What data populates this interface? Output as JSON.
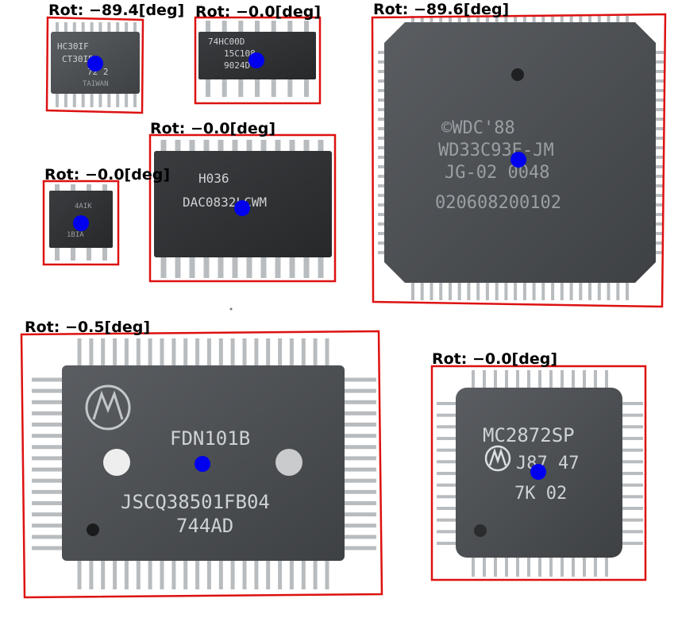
{
  "detections": [
    {
      "id": "chip-1",
      "label": "Rot: −89.4[deg]",
      "markings": [
        "HC30IF",
        "CT30IB",
        "72 2",
        "TAIWAN"
      ]
    },
    {
      "id": "chip-2",
      "label": "Rot: −0.0[deg]",
      "markings": [
        "74HC00D",
        "15C108",
        "9024D"
      ]
    },
    {
      "id": "chip-3",
      "label": "Rot: −89.6[deg]",
      "markings": [
        "©WDC'88",
        "WD33C93E-JM",
        "JG-02 0048",
        "020608200102"
      ]
    },
    {
      "id": "chip-4",
      "label": "Rot: −0.0[deg]",
      "markings": [
        "H036",
        "DAC0832LCWM"
      ]
    },
    {
      "id": "chip-5",
      "label": "Rot: −0.0[deg]",
      "markings": [
        "4AIK",
        "1BIA"
      ]
    },
    {
      "id": "chip-6",
      "label": "Rot: −0.5[deg]",
      "markings": [
        "FDN101B",
        "JSCQ38501FB04",
        "744AD"
      ]
    },
    {
      "id": "chip-7",
      "label": "Rot: −0.0[deg]",
      "markings": [
        "MC2872SP",
        "J87 47",
        "7K 02"
      ]
    }
  ],
  "colors": {
    "box": "#dd1111",
    "center": "#0000ee",
    "chip_body": "#4a4d50",
    "pins": "#b9bcbf",
    "label": "#000000"
  }
}
